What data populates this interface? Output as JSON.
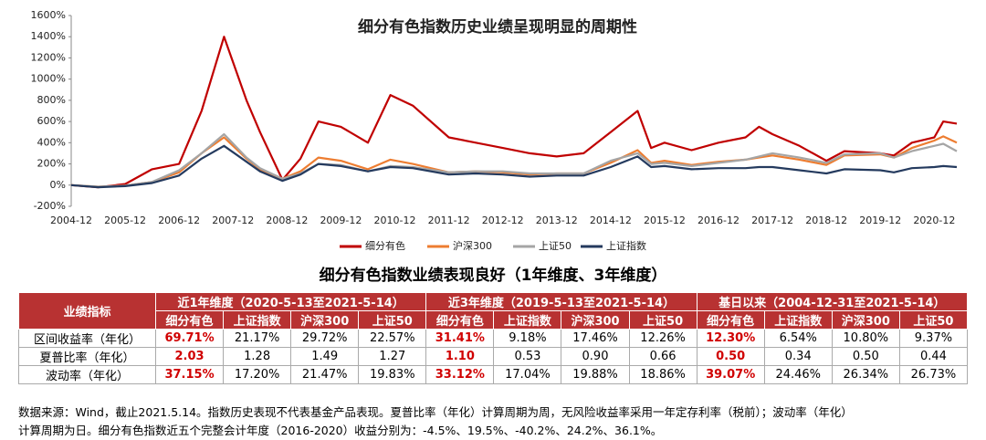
{
  "chart_data": {
    "type": "line",
    "title": "细分有色指数历史业绩呈现明显的周期性",
    "x": [
      "2004-12",
      "2005-06",
      "2005-12",
      "2006-06",
      "2006-12",
      "2007-05",
      "2007-10",
      "2008-03",
      "2008-06",
      "2008-11",
      "2009-03",
      "2009-07",
      "2009-12",
      "2010-06",
      "2010-11",
      "2011-04",
      "2011-12",
      "2012-06",
      "2012-12",
      "2013-06",
      "2013-12",
      "2014-06",
      "2014-12",
      "2015-06",
      "2015-09",
      "2015-12",
      "2016-06",
      "2016-12",
      "2017-06",
      "2017-09",
      "2017-12",
      "2018-06",
      "2018-12",
      "2019-04",
      "2019-12",
      "2020-03",
      "2020-07",
      "2020-12",
      "2021-02",
      "2021-05"
    ],
    "series": [
      {
        "name": "细分有色",
        "color": "#c00000",
        "values": [
          0,
          -20,
          10,
          150,
          200,
          700,
          1400,
          800,
          500,
          50,
          250,
          600,
          550,
          400,
          850,
          750,
          450,
          400,
          350,
          300,
          270,
          300,
          500,
          700,
          350,
          400,
          330,
          400,
          450,
          550,
          480,
          370,
          230,
          320,
          300,
          280,
          400,
          450,
          600,
          580
        ]
      },
      {
        "name": "沪深300",
        "color": "#ed7d31",
        "values": [
          0,
          -15,
          -5,
          30,
          120,
          300,
          450,
          250,
          150,
          60,
          130,
          260,
          230,
          150,
          240,
          200,
          120,
          130,
          120,
          100,
          110,
          110,
          210,
          330,
          210,
          230,
          190,
          220,
          240,
          260,
          280,
          240,
          190,
          280,
          290,
          260,
          350,
          420,
          460,
          400
        ]
      },
      {
        "name": "上证50",
        "color": "#a5a5a5",
        "values": [
          0,
          -15,
          -5,
          30,
          140,
          300,
          480,
          260,
          160,
          60,
          110,
          200,
          190,
          130,
          180,
          170,
          120,
          130,
          130,
          110,
          110,
          110,
          230,
          300,
          200,
          210,
          180,
          210,
          240,
          270,
          300,
          260,
          210,
          290,
          300,
          260,
          320,
          370,
          390,
          320
        ]
      },
      {
        "name": "上证指数",
        "color": "#243a5e",
        "values": [
          0,
          -20,
          -10,
          20,
          90,
          250,
          370,
          220,
          130,
          40,
          100,
          200,
          180,
          130,
          170,
          160,
          100,
          110,
          100,
          80,
          90,
          90,
          170,
          270,
          170,
          180,
          150,
          160,
          160,
          170,
          170,
          140,
          110,
          150,
          140,
          120,
          160,
          170,
          180,
          170
        ]
      }
    ],
    "ylim": [
      -200,
      1600
    ],
    "yticks": [
      {
        "value": -200,
        "label": "-200%"
      },
      {
        "value": 0,
        "label": "0%"
      },
      {
        "value": 200,
        "label": "200%"
      },
      {
        "value": 400,
        "label": "400%"
      },
      {
        "value": 600,
        "label": "600%"
      },
      {
        "value": 800,
        "label": "800%"
      },
      {
        "value": 1000,
        "label": "1000%"
      },
      {
        "value": 1200,
        "label": "1200%"
      },
      {
        "value": 1400,
        "label": "1400%"
      },
      {
        "value": 1600,
        "label": "1600%"
      }
    ],
    "xticks": [
      "2004-12",
      "2005-12",
      "2006-12",
      "2007-12",
      "2008-12",
      "2009-12",
      "2010-12",
      "2011-12",
      "2012-12",
      "2013-12",
      "2014-12",
      "2015-12",
      "2016-12",
      "2017-12",
      "2018-12",
      "2019-12",
      "2020-12"
    ],
    "legend": "bottom"
  },
  "table_title": "细分有色指数业绩表现良好（1年维度、3年维度）",
  "table": {
    "corner": "业绩指标",
    "groups": [
      {
        "title": "近1年维度（2020-5-13至2021-5-14）",
        "columns": [
          "细分有色",
          "上证指数",
          "沪深300",
          "上证50"
        ]
      },
      {
        "title": "近3年维度（2019-5-13至2021-5-14）",
        "columns": [
          "细分有色",
          "上证指数",
          "沪深300",
          "上证50"
        ]
      },
      {
        "title": "基日以来（2004-12-31至2021-5-14）",
        "columns": [
          "细分有色",
          "上证指数",
          "沪深300",
          "上证50"
        ]
      }
    ],
    "rows": [
      [
        "区间收益率（年化）",
        "69.71%",
        "21.17%",
        "29.72%",
        "22.57%",
        "31.41%",
        "9.18%",
        "17.46%",
        "12.26%",
        "12.30%",
        "6.54%",
        "10.80%",
        "9.37%"
      ],
      [
        "夏普比率（年化）",
        "2.03",
        "1.28",
        "1.49",
        "1.27",
        "1.10",
        "0.53",
        "0.90",
        "0.66",
        "0.50",
        "0.34",
        "0.50",
        "0.44"
      ],
      [
        "波动率（年化）",
        "37.15%",
        "17.20%",
        "21.47%",
        "19.83%",
        "33.12%",
        "17.04%",
        "19.88%",
        "18.86%",
        "39.07%",
        "24.46%",
        "26.34%",
        "26.73%"
      ]
    ]
  },
  "footnote": [
    "数据来源：Wind，截止2021.5.14。指数历史表现不代表基金产品表现。夏普比率（年化）计算周期为周，无风险收益率采用一年定存利率（税前）；波动率（年化）",
    "计算周期为日。细分有色指数近五个完整会计年度（2016-2020）收益分别为：-4.5%、19.5%、-40.2%、24.2%、36.1%。"
  ]
}
